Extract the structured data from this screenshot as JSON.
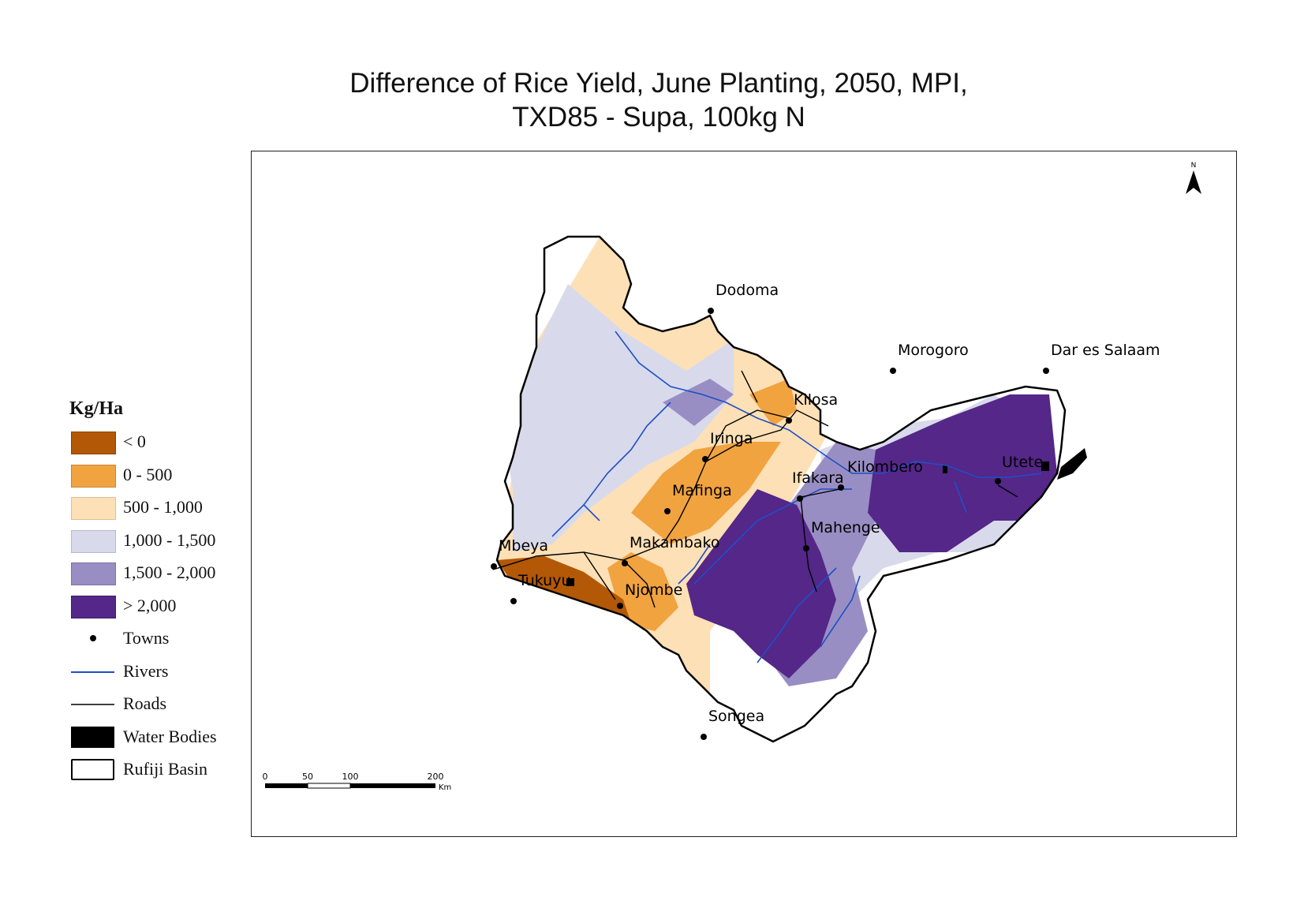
{
  "title": {
    "line1": "Difference of Rice Yield, June Planting, 2050, MPI,",
    "line2": "TXD85 - Supa, 100kg N"
  },
  "legend": {
    "title": "Kg/Ha",
    "classes": [
      {
        "label": "< 0",
        "color": "#b35806"
      },
      {
        "label": "0 - 500",
        "color": "#f1a340"
      },
      {
        "label": "500 - 1,000",
        "color": "#fee0b6"
      },
      {
        "label": "1,000 - 1,500",
        "color": "#d8daeb"
      },
      {
        "label": "1,500 - 2,000",
        "color": "#998ec3"
      },
      {
        "label": "> 2,000",
        "color": "#542788"
      }
    ],
    "symbols": [
      {
        "label": "Towns",
        "color": "#000000"
      },
      {
        "label": "Rivers",
        "color": "#1f4fc8"
      },
      {
        "label": "Roads",
        "color": "#000000"
      },
      {
        "label": "Water Bodies",
        "color": "#000000"
      },
      {
        "label": "Rufiji Basin",
        "color": "#000000"
      }
    ]
  },
  "towns": [
    "Dodoma",
    "Morogoro",
    "Dar es Salaam",
    "Kilosa",
    "Iringa",
    "Ifakara",
    "Kilombero",
    "Utete",
    "Mafinga",
    "Mahenge",
    "Mbeya",
    "Makambako",
    "Tukuyu",
    "Njombe",
    "Songea"
  ],
  "north_arrow": {
    "label": "N"
  },
  "scale_bar": {
    "ticks": [
      "0",
      "50",
      "100",
      "200"
    ],
    "unit": "Km"
  }
}
